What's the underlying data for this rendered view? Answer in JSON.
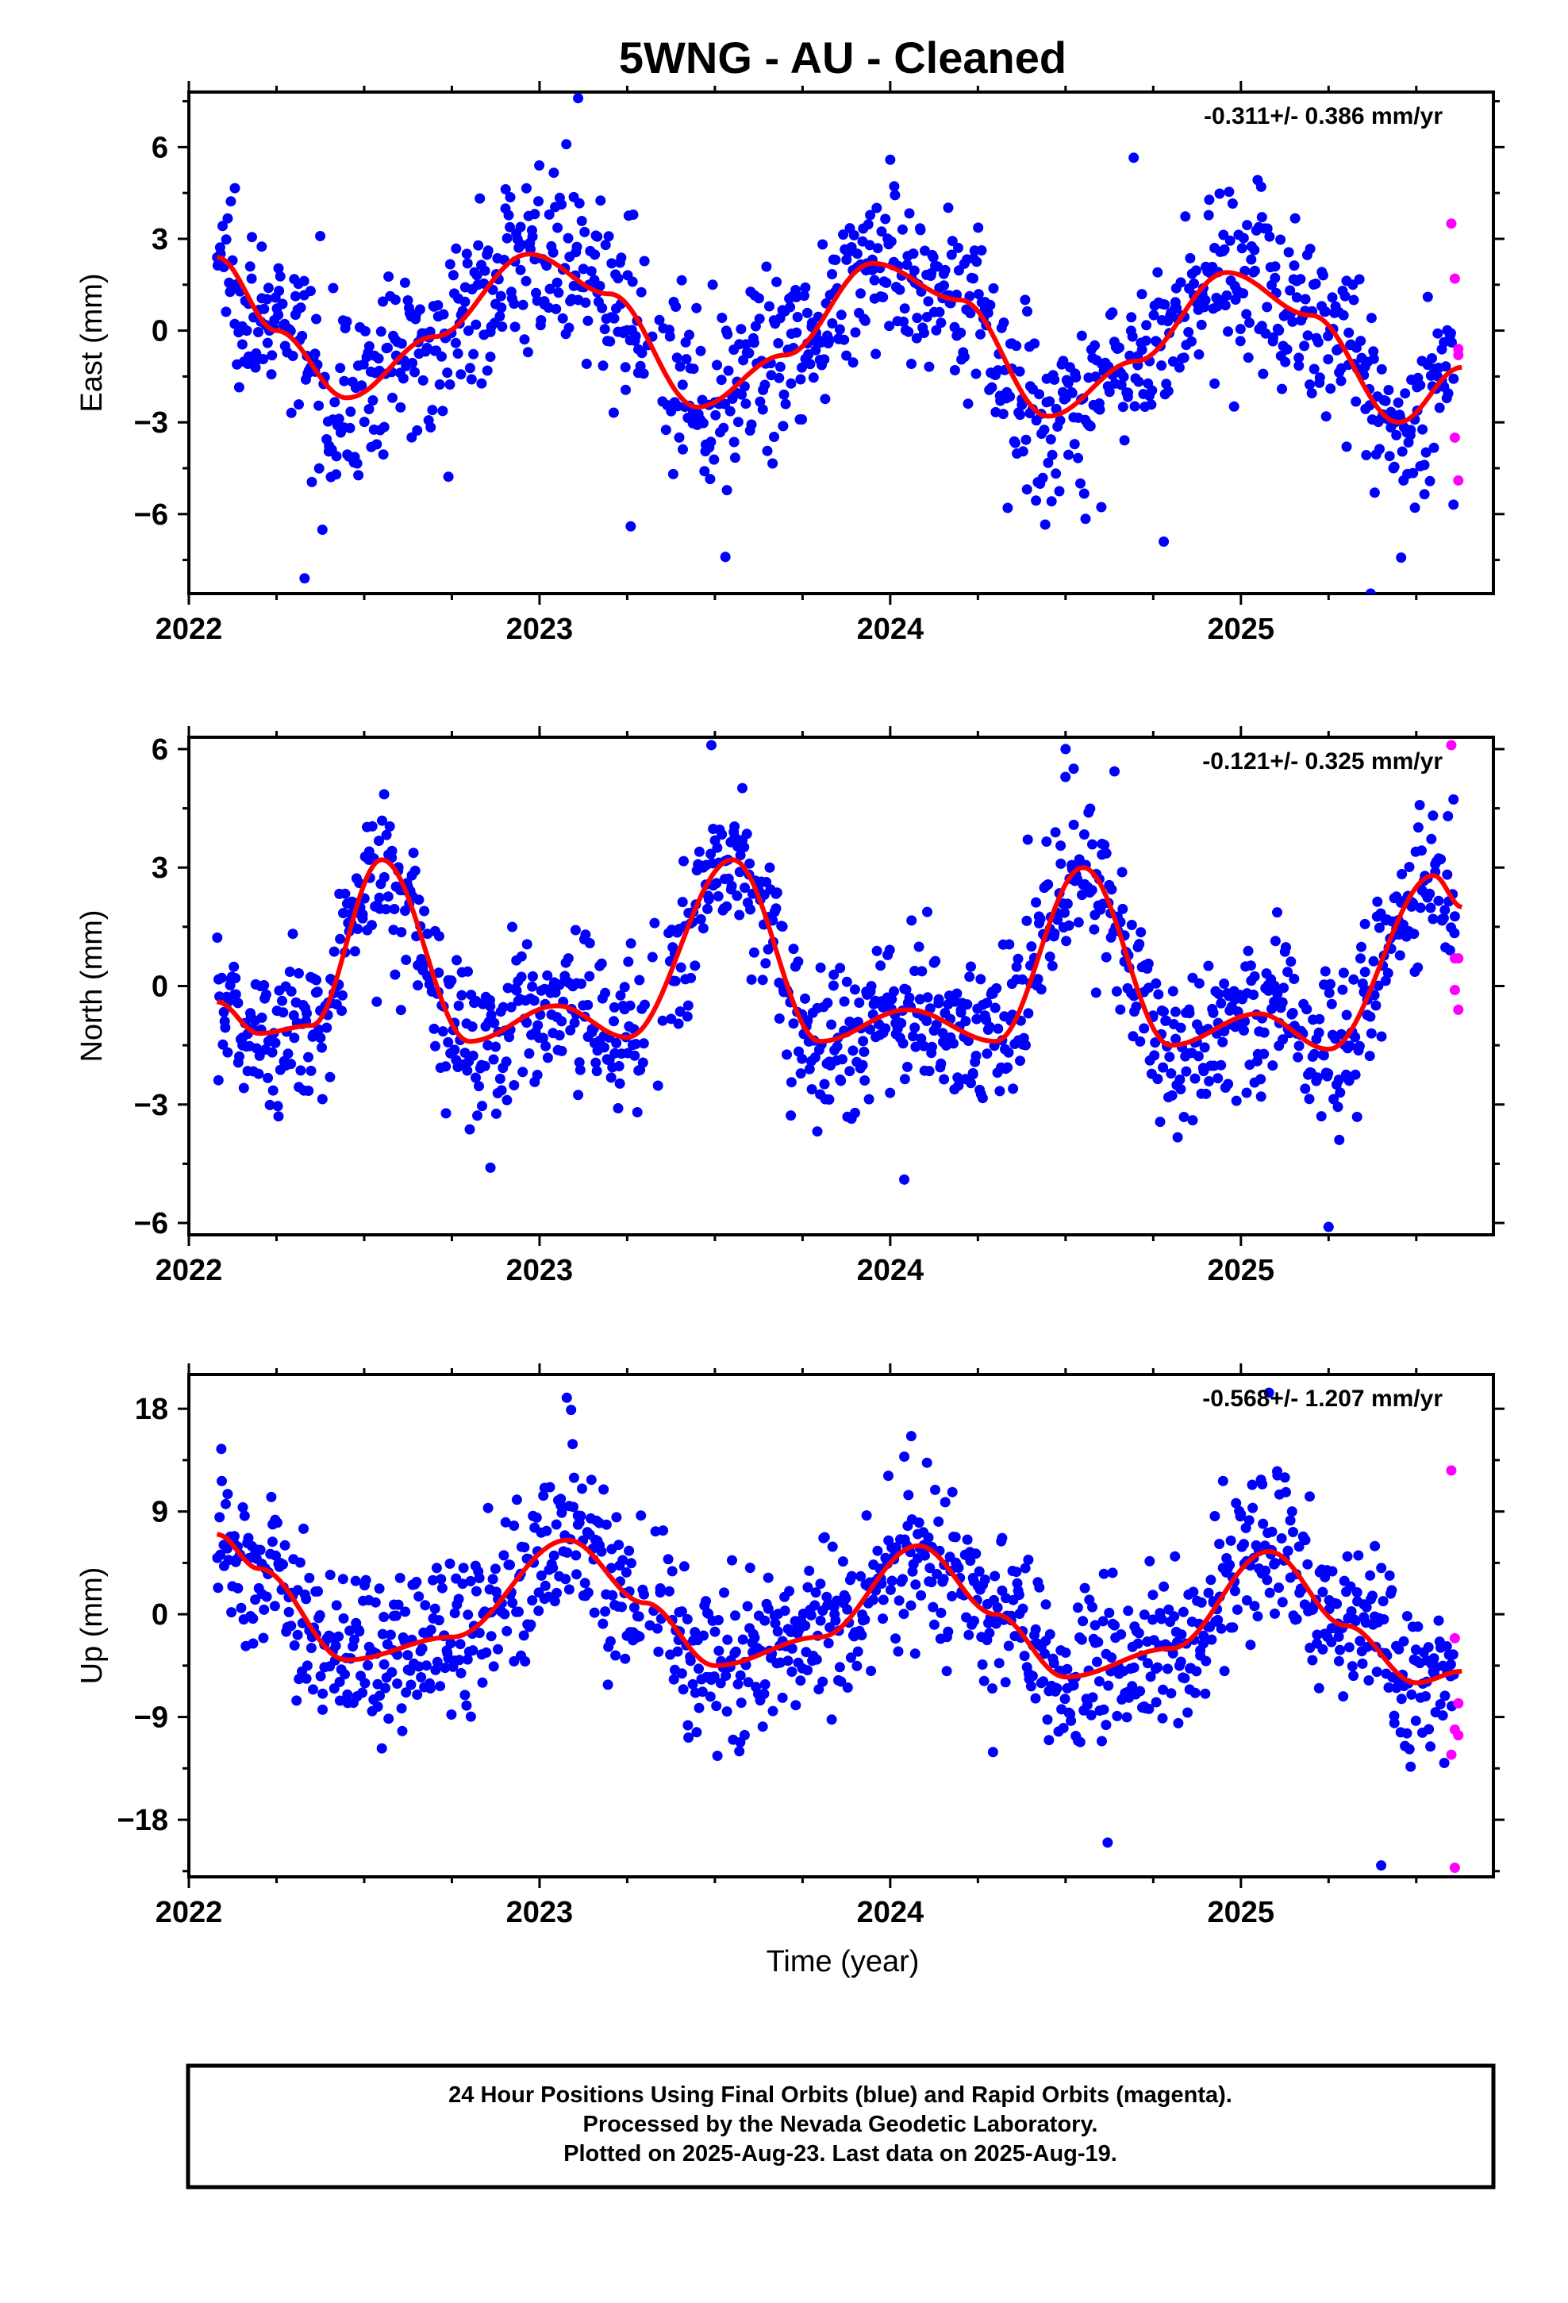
{
  "figure": {
    "title": "5WNG  - AU - Cleaned",
    "xlabel": "Time (year)",
    "footer": [
      "24 Hour Positions Using Final Orbits (blue) and Rapid Orbits (magenta).",
      "Processed by the Nevada Geodetic Laboratory.",
      "Plotted on 2025-Aug-23. Last data on 2025-Aug-19."
    ]
  },
  "colors": {
    "final_orbits": "#0000ff",
    "rapid_orbits": "#ff00ff",
    "model_fit": "#ff0000",
    "frame": "#000000"
  },
  "chart_data": [
    {
      "type": "scatter",
      "ylabel": "East (mm)",
      "rate_label": "-0.311+/- 0.386 mm/yr",
      "xlim": [
        2022.0,
        2025.72
      ],
      "ylim": [
        -8.6,
        7.8
      ],
      "xticks": [
        2022,
        2023,
        2024,
        2025
      ],
      "yticks": [
        -6,
        -3,
        0,
        3,
        6
      ],
      "grid": false,
      "data_start": 2022.08,
      "data_end": 2025.63,
      "seasonal_model": {
        "x": [
          2022.08,
          2022.25,
          2022.45,
          2022.7,
          2022.97,
          2023.2,
          2023.45,
          2023.7,
          2023.95,
          2024.2,
          2024.45,
          2024.7,
          2024.96,
          2025.2,
          2025.45,
          2025.63
        ],
        "y": [
          2.4,
          0.0,
          -2.2,
          -0.2,
          2.5,
          1.2,
          -2.5,
          -0.8,
          2.2,
          1.0,
          -2.8,
          -1.0,
          1.9,
          0.5,
          -3.0,
          -1.2
        ]
      },
      "final_orbits_scatter": 1.4,
      "rapid_orbits": {
        "x": [
          2025.6,
          2025.61,
          2025.62,
          2025.62,
          2025.61,
          2025.62
        ],
        "y": [
          3.5,
          1.7,
          -0.6,
          -0.8,
          -3.5,
          -4.9
        ]
      },
      "outliers": {
        "x": [
          2022.33,
          2023.11,
          2023.26,
          2023.53,
          2024.78,
          2025.37
        ],
        "y": [
          -8.1,
          7.6,
          -6.4,
          -7.4,
          -6.9,
          -8.6
        ]
      }
    },
    {
      "type": "scatter",
      "ylabel": "North (mm)",
      "rate_label": "-0.121+/- 0.325 mm/yr",
      "xlim": [
        2022.0,
        2025.72
      ],
      "ylim": [
        -6.3,
        6.3
      ],
      "xticks": [
        2022,
        2023,
        2024,
        2025
      ],
      "yticks": [
        -6,
        -3,
        0,
        3,
        6
      ],
      "grid": false,
      "data_start": 2022.08,
      "data_end": 2025.63,
      "seasonal_model": {
        "x": [
          2022.08,
          2022.2,
          2022.35,
          2022.55,
          2022.8,
          2023.05,
          2023.25,
          2023.55,
          2023.8,
          2024.05,
          2024.3,
          2024.55,
          2024.8,
          2025.05,
          2025.25,
          2025.55,
          2025.63
        ],
        "y": [
          -0.4,
          -1.2,
          -1.0,
          3.2,
          -1.4,
          -0.5,
          -1.3,
          3.2,
          -1.4,
          -0.6,
          -1.4,
          3.0,
          -1.5,
          -0.7,
          -1.6,
          2.8,
          2.0
        ]
      },
      "final_orbits_scatter": 1.0,
      "rapid_orbits": {
        "x": [
          2025.6,
          2025.61,
          2025.62,
          2025.61,
          2025.62
        ],
        "y": [
          6.1,
          0.7,
          0.7,
          -0.1,
          -0.6
        ]
      },
      "outliers": {
        "x": [
          2022.86,
          2023.49,
          2024.04,
          2024.5,
          2025.25
        ],
        "y": [
          -4.6,
          6.1,
          -4.9,
          6.0,
          -6.1
        ]
      }
    },
    {
      "type": "scatter",
      "ylabel": "Up (mm)",
      "rate_label": "-0.568+/- 1.207 mm/yr",
      "xlim": [
        2022.0,
        2025.72
      ],
      "ylim": [
        -23,
        21
      ],
      "xticks": [
        2022,
        2023,
        2024,
        2025
      ],
      "yticks": [
        -18,
        -9,
        0,
        9,
        18
      ],
      "grid": false,
      "data_start": 2022.08,
      "data_end": 2025.63,
      "seasonal_model": {
        "x": [
          2022.08,
          2022.2,
          2022.45,
          2022.75,
          2023.08,
          2023.3,
          2023.5,
          2023.8,
          2024.08,
          2024.3,
          2024.5,
          2024.8,
          2025.08,
          2025.3,
          2025.5,
          2025.63
        ],
        "y": [
          7.0,
          4.0,
          -4.0,
          -2.0,
          6.5,
          1.0,
          -4.5,
          -2.0,
          6.0,
          0.0,
          -5.5,
          -3.0,
          5.5,
          -1.0,
          -6.0,
          -5.0
        ]
      },
      "final_orbits_scatter": 3.6,
      "rapid_orbits": {
        "x": [
          2025.6,
          2025.61,
          2025.62,
          2025.61,
          2025.62,
          2025.6,
          2025.61
        ],
        "y": [
          12.6,
          -2.1,
          -7.8,
          -10.1,
          -10.6,
          -12.3,
          -22.2
        ]
      },
      "outliers": {
        "x": [
          2023.09,
          2024.06,
          2024.62,
          2025.08,
          2025.4
        ],
        "y": [
          17.9,
          15.6,
          -20.0,
          19.4,
          -22.0
        ]
      }
    }
  ]
}
